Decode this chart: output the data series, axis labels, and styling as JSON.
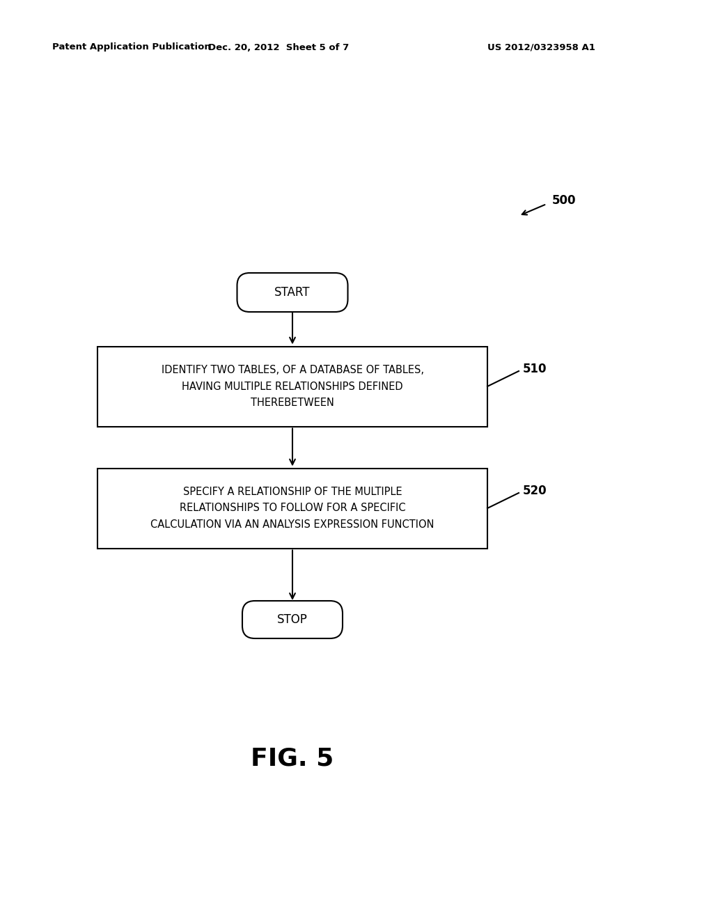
{
  "bg_color": "#ffffff",
  "text_color": "#000000",
  "header_left": "Patent Application Publication",
  "header_center": "Dec. 20, 2012  Sheet 5 of 7",
  "header_right": "US 2012/0323958 A1",
  "fig_label": "FIG. 5",
  "diagram_label": "500",
  "start_label": "START",
  "stop_label": "STOP",
  "box1_text": "IDENTIFY TWO TABLES, OF A DATABASE OF TABLES,\nHAVING MULTIPLE RELATIONSHIPS DEFINED\nTHEREBETWEEN",
  "box1_label": "510",
  "box2_text": "SPECIFY A RELATIONSHIP OF THE MULTIPLE\nRELATIONSHIPS TO FOLLOW FOR A SPECIFIC\nCALCULATION VIA AN ANALYSIS EXPRESSION FUNCTION",
  "box2_label": "520",
  "line_color": "#000000",
  "line_width": 1.5
}
